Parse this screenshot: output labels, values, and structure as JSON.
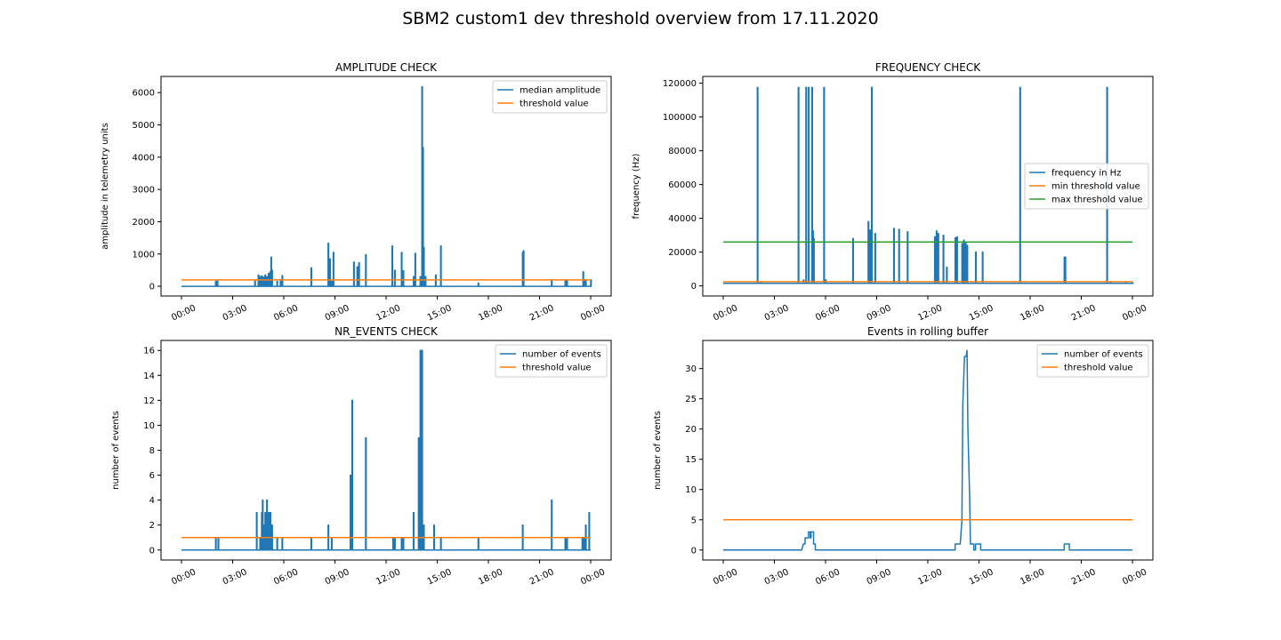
{
  "figure": {
    "title": "SBM2 custom1 dev threshold overview from 17.11.2020"
  },
  "colors": {
    "blue": "#1f77b4",
    "orange": "#ff7f0e",
    "green": "#2ca02c"
  },
  "x_tick_labels": [
    "00:00",
    "03:00",
    "06:00",
    "09:00",
    "12:00",
    "15:00",
    "18:00",
    "21:00",
    "00:00"
  ],
  "chart_data": [
    {
      "type": "line",
      "title": "AMPLITUDE CHECK",
      "xlabel": "",
      "ylabel": "amplitude in telemetry units",
      "x_unit": "hours since 00:00",
      "xlim": [
        -1.2,
        25.2
      ],
      "ylim": [
        -300,
        6500
      ],
      "yticks": [
        0,
        1000,
        2000,
        3000,
        4000,
        5000,
        6000
      ],
      "ytick_labels": [
        "0",
        "1000",
        "2000",
        "3000",
        "4000",
        "5000",
        "6000"
      ],
      "legend": {
        "position": "upper-right"
      },
      "series": [
        {
          "name": "median amplitude",
          "color": "blue",
          "kind": "spikes",
          "baseline": 0,
          "spikes": [
            [
              2.0,
              150
            ],
            [
              2.1,
              170
            ],
            [
              4.3,
              180
            ],
            [
              4.5,
              350
            ],
            [
              4.6,
              300
            ],
            [
              4.7,
              320
            ],
            [
              4.8,
              280
            ],
            [
              4.9,
              350
            ],
            [
              5.0,
              300
            ],
            [
              5.1,
              400
            ],
            [
              5.2,
              450
            ],
            [
              5.25,
              900
            ],
            [
              5.3,
              500
            ],
            [
              5.6,
              150
            ],
            [
              5.8,
              200
            ],
            [
              5.9,
              330
            ],
            [
              7.6,
              570
            ],
            [
              8.6,
              1330
            ],
            [
              8.7,
              850
            ],
            [
              8.8,
              150
            ],
            [
              8.9,
              1050
            ],
            [
              10.1,
              750
            ],
            [
              10.3,
              600
            ],
            [
              10.4,
              730
            ],
            [
              10.8,
              980
            ],
            [
              12.35,
              1250
            ],
            [
              12.5,
              500
            ],
            [
              12.9,
              1050
            ],
            [
              13.0,
              480
            ],
            [
              13.6,
              300
            ],
            [
              13.7,
              1020
            ],
            [
              14.0,
              300
            ],
            [
              14.1,
              6180
            ],
            [
              14.15,
              4300
            ],
            [
              14.2,
              1200
            ],
            [
              14.3,
              300
            ],
            [
              14.9,
              350
            ],
            [
              15.2,
              1250
            ],
            [
              17.4,
              100
            ],
            [
              20.0,
              1050
            ],
            [
              20.05,
              1100
            ],
            [
              21.7,
              170
            ],
            [
              22.5,
              170
            ],
            [
              22.6,
              170
            ],
            [
              23.55,
              450
            ],
            [
              23.6,
              200
            ],
            [
              23.7,
              200
            ],
            [
              24.0,
              200
            ]
          ]
        },
        {
          "name": "threshold value",
          "color": "orange",
          "kind": "flat",
          "value": 200,
          "x": [
            0,
            24
          ]
        }
      ]
    },
    {
      "type": "line",
      "title": "FREQUENCY CHECK",
      "xlabel": "",
      "ylabel": "frequency (Hz)",
      "x_unit": "hours since 00:00",
      "xlim": [
        -1.2,
        25.2
      ],
      "ylim": [
        -6000,
        124000
      ],
      "yticks": [
        0,
        20000,
        40000,
        60000,
        80000,
        100000,
        120000
      ],
      "ytick_labels": [
        "0",
        "20000",
        "40000",
        "60000",
        "80000",
        "100000",
        "120000"
      ],
      "legend": {
        "position": "center-right"
      },
      "series": [
        {
          "name": "frequency in Hz",
          "color": "blue",
          "kind": "spikes",
          "baseline": 1500,
          "spikes": [
            [
              2.0,
              117500
            ],
            [
              2.2,
              2000
            ],
            [
              4.4,
              117500
            ],
            [
              4.7,
              3500
            ],
            [
              4.85,
              117500
            ],
            [
              5.0,
              117500
            ],
            [
              5.2,
              117500
            ],
            [
              5.25,
              32500
            ],
            [
              5.3,
              28000
            ],
            [
              5.9,
              117500
            ],
            [
              6.0,
              3500
            ],
            [
              7.6,
              28000
            ],
            [
              8.5,
              38000
            ],
            [
              8.6,
              33000
            ],
            [
              8.7,
              117500
            ],
            [
              8.9,
              31000
            ],
            [
              10.0,
              34000
            ],
            [
              10.3,
              33500
            ],
            [
              10.8,
              32000
            ],
            [
              12.4,
              29000
            ],
            [
              12.5,
              32500
            ],
            [
              12.6,
              31000
            ],
            [
              12.9,
              30000
            ],
            [
              13.1,
              11000
            ],
            [
              13.6,
              28500
            ],
            [
              13.7,
              29000
            ],
            [
              14.0,
              25000
            ],
            [
              14.1,
              27000
            ],
            [
              14.2,
              26000
            ],
            [
              14.3,
              24000
            ],
            [
              14.8,
              20000
            ],
            [
              15.2,
              20000
            ],
            [
              17.4,
              117500
            ],
            [
              20.0,
              17000
            ],
            [
              20.05,
              17000
            ],
            [
              22.5,
              117500
            ],
            [
              22.7,
              1800
            ],
            [
              23.6,
              1800
            ],
            [
              24.0,
              1800
            ]
          ]
        },
        {
          "name": "min threshold value",
          "color": "orange",
          "kind": "flat",
          "value": 2500,
          "x": [
            0,
            24
          ]
        },
        {
          "name": "max threshold value",
          "color": "green",
          "kind": "flat",
          "value": 26000,
          "x": [
            0,
            24
          ]
        }
      ]
    },
    {
      "type": "line",
      "title": "NR_EVENTS CHECK",
      "xlabel": "",
      "ylabel": "number of events",
      "x_unit": "hours since 00:00",
      "xlim": [
        -1.2,
        25.2
      ],
      "ylim": [
        -0.8,
        16.8
      ],
      "yticks": [
        0,
        2,
        4,
        6,
        8,
        10,
        12,
        14,
        16
      ],
      "ytick_labels": [
        "0",
        "2",
        "4",
        "6",
        "8",
        "10",
        "12",
        "14",
        "16"
      ],
      "legend": {
        "position": "upper-right"
      },
      "series": [
        {
          "name": "number of events",
          "color": "blue",
          "kind": "spikes",
          "baseline": 0,
          "spikes": [
            [
              2.0,
              1
            ],
            [
              2.15,
              1
            ],
            [
              4.4,
              3
            ],
            [
              4.6,
              1
            ],
            [
              4.7,
              3
            ],
            [
              4.75,
              4
            ],
            [
              4.8,
              2
            ],
            [
              4.85,
              2
            ],
            [
              4.9,
              3
            ],
            [
              4.95,
              2
            ],
            [
              5.0,
              4
            ],
            [
              5.05,
              2
            ],
            [
              5.1,
              3
            ],
            [
              5.2,
              3
            ],
            [
              5.3,
              2
            ],
            [
              5.6,
              1
            ],
            [
              5.9,
              1
            ],
            [
              7.6,
              1
            ],
            [
              8.6,
              2
            ],
            [
              8.8,
              1
            ],
            [
              9.9,
              6
            ],
            [
              10.0,
              12
            ],
            [
              10.8,
              9
            ],
            [
              12.4,
              1
            ],
            [
              12.5,
              1
            ],
            [
              12.9,
              1
            ],
            [
              13.0,
              1
            ],
            [
              13.6,
              3
            ],
            [
              13.9,
              9
            ],
            [
              14.0,
              16
            ],
            [
              14.05,
              16
            ],
            [
              14.1,
              16
            ],
            [
              14.2,
              2
            ],
            [
              14.8,
              2
            ],
            [
              15.2,
              1
            ],
            [
              17.4,
              1
            ],
            [
              20.0,
              2
            ],
            [
              21.7,
              4
            ],
            [
              22.5,
              1
            ],
            [
              22.6,
              1
            ],
            [
              23.5,
              1
            ],
            [
              23.6,
              1
            ],
            [
              23.7,
              2
            ],
            [
              23.9,
              3
            ]
          ]
        },
        {
          "name": "threshold value",
          "color": "orange",
          "kind": "flat",
          "value": 1,
          "x": [
            0,
            24
          ]
        }
      ]
    },
    {
      "type": "line",
      "title": "Events in rolling buffer",
      "xlabel": "",
      "ylabel": "number of events",
      "x_unit": "hours since 00:00",
      "xlim": [
        -1.2,
        25.2
      ],
      "ylim": [
        -1.65,
        34.65
      ],
      "yticks": [
        0,
        5,
        10,
        15,
        20,
        25,
        30
      ],
      "ytick_labels": [
        "0",
        "5",
        "10",
        "15",
        "20",
        "25",
        "30"
      ],
      "legend": {
        "position": "upper-right"
      },
      "series": [
        {
          "name": "number of events",
          "color": "blue",
          "kind": "line",
          "points": [
            [
              0,
              0
            ],
            [
              4.6,
              0
            ],
            [
              4.7,
              1
            ],
            [
              4.8,
              1
            ],
            [
              4.8,
              2
            ],
            [
              5.0,
              2
            ],
            [
              5.0,
              3
            ],
            [
              5.1,
              3
            ],
            [
              5.1,
              2
            ],
            [
              5.15,
              2
            ],
            [
              5.15,
              3
            ],
            [
              5.3,
              3
            ],
            [
              5.3,
              1
            ],
            [
              5.4,
              1
            ],
            [
              5.4,
              0
            ],
            [
              13.6,
              0
            ],
            [
              13.6,
              1
            ],
            [
              13.9,
              1
            ],
            [
              14.0,
              5
            ],
            [
              14.05,
              24
            ],
            [
              14.15,
              32
            ],
            [
              14.25,
              32
            ],
            [
              14.3,
              33
            ],
            [
              14.35,
              20
            ],
            [
              14.45,
              9
            ],
            [
              14.5,
              1
            ],
            [
              14.7,
              1
            ],
            [
              14.7,
              0
            ],
            [
              14.8,
              0
            ],
            [
              14.8,
              1
            ],
            [
              15.1,
              1
            ],
            [
              15.1,
              0
            ],
            [
              20.0,
              0
            ],
            [
              20.0,
              1
            ],
            [
              20.3,
              1
            ],
            [
              20.3,
              0
            ],
            [
              24.0,
              0
            ]
          ]
        },
        {
          "name": "threshold value",
          "color": "orange",
          "kind": "flat",
          "value": 5,
          "x": [
            0,
            24
          ]
        }
      ]
    }
  ]
}
